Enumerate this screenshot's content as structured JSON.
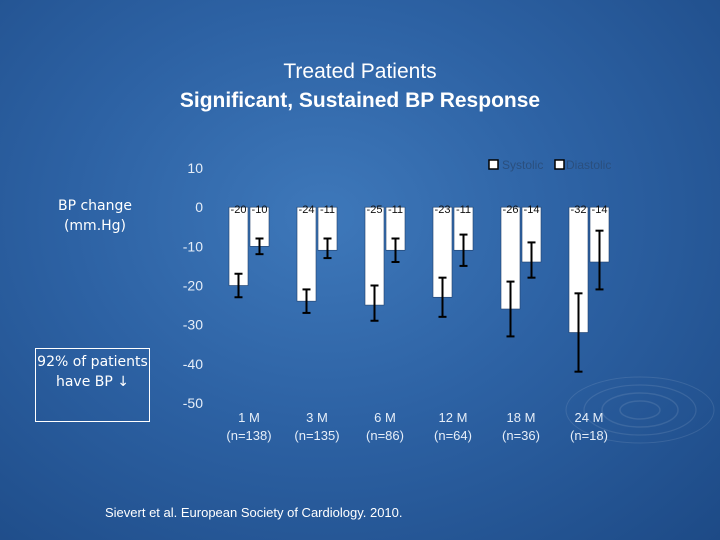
{
  "slide": {
    "title_line1": "Treated Patients",
    "title_line2": "Significant, Sustained BP Response",
    "y_label": "BP change (mm.Hg)",
    "callout": "92% of patients have BP ↓",
    "citation": "Sievert et al. European Society of Cardiology.  2010."
  },
  "chart_data": {
    "type": "bar",
    "title": "",
    "ylabel": "BP change (mm.Hg)",
    "xlabel": "",
    "ylim": [
      -50,
      10
    ],
    "yticks": [
      10,
      0,
      -10,
      -20,
      -30,
      -40,
      -50
    ],
    "categories": [
      "1 M",
      "3 M",
      "6 M",
      "12 M",
      "18 M",
      "24 M"
    ],
    "sample_sizes": [
      "(n=138)",
      "(n=135)",
      "(n=86)",
      "(n=64)",
      "(n=36)",
      "(n=18)"
    ],
    "series": [
      {
        "name": "Systolic",
        "values": [
          -20,
          -24,
          -25,
          -23,
          -26,
          -32
        ],
        "labels": [
          "-20",
          "-24",
          "-25",
          "-23",
          "-26",
          "-32"
        ],
        "error_low": [
          -23,
          -27,
          -29,
          -28,
          -33,
          -42
        ],
        "error_high": [
          -17,
          -21,
          -20,
          -18,
          -19,
          -22
        ]
      },
      {
        "name": "Diastolic",
        "values": [
          -10,
          -11,
          -11,
          -11,
          -14,
          -14
        ],
        "labels": [
          "-10",
          "-11",
          "-11",
          "-11",
          "-14",
          "-14"
        ],
        "error_low": [
          -12,
          -13,
          -14,
          -15,
          -18,
          -21
        ],
        "error_high": [
          -8,
          -8,
          -8,
          -7,
          -9,
          -6
        ]
      }
    ],
    "legend": [
      "Systolic",
      "Diastolic"
    ],
    "legend_position": "top-right",
    "grid": false,
    "colors": {
      "bar": "#ffffff",
      "error": "#000000",
      "axis_text": "#e6eef8"
    }
  }
}
